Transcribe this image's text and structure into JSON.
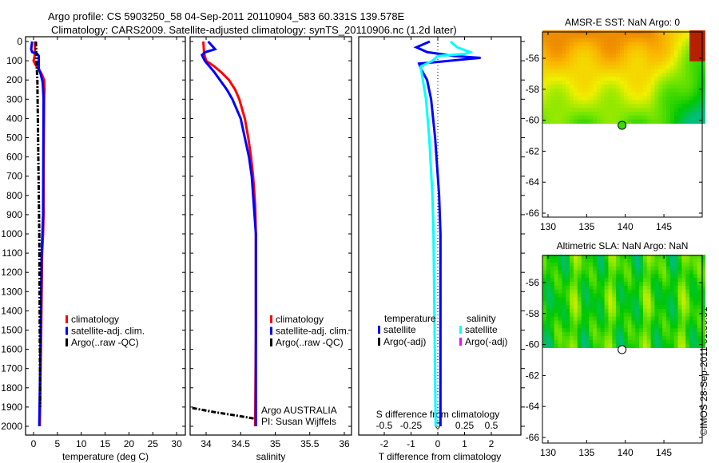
{
  "header": {
    "line1": "Argo profile: CS 5903250_58 04-Sep-2011 20110904_583 60.331S 139.578E",
    "line2": "Climatology: CARS2009. Satellite-adjusted climatology: synTS_20110906.nc (1.2d later)"
  },
  "colors": {
    "climatology": "#ff0000",
    "satellite": "#0000ff",
    "argo": "#000000",
    "sal_satellite": "#00ffff",
    "sal_argo": "#ff00ff"
  },
  "depth_ticks": [
    "0",
    "100",
    "200",
    "300",
    "400",
    "500",
    "600",
    "700",
    "800",
    "900",
    "1000",
    "1100",
    "1200",
    "1300",
    "1400",
    "1500",
    "1600",
    "1700",
    "1800",
    "1900",
    "2000"
  ],
  "chart_data": [
    {
      "type": "line",
      "xlabel": "temperature (deg C)",
      "ylabel": "depth",
      "xlim": [
        -1.7,
        31.8
      ],
      "ylim": [
        2045,
        0
      ],
      "xticks": [
        "0",
        "5",
        "10",
        "15",
        "20",
        "25",
        "30"
      ],
      "legend": [
        "climatology",
        "satellite-adj. clim.",
        "Argo(..raw -QC)"
      ],
      "series": [
        {
          "name": "climatology",
          "depth": [
            0,
            50,
            80,
            100,
            120,
            140,
            160,
            180,
            200,
            250,
            300,
            700,
            900,
            1000,
            1100,
            1500,
            2000
          ],
          "values": [
            0.3,
            0.3,
            0.2,
            0.0,
            0.4,
            0.9,
            1.5,
            1.9,
            2.2,
            2.3,
            2.2,
            2.1,
            2.1,
            2.0,
            1.8,
            1.6,
            1.3
          ]
        },
        {
          "name": "satellite-adj. clim.",
          "depth": [
            0,
            40,
            55,
            65,
            75,
            140,
            170,
            210,
            250,
            300,
            900,
            1100,
            1500,
            2000
          ],
          "values": [
            -0.3,
            -0.5,
            -0.3,
            0.8,
            1.1,
            1.1,
            1.5,
            1.9,
            2.0,
            2.1,
            2.0,
            1.7,
            1.5,
            1.2
          ]
        },
        {
          "name": "Argo(..raw -QC)",
          "depth": [
            0,
            100,
            200,
            400,
            600,
            800,
            1000,
            1200,
            1500,
            1900
          ],
          "values": [
            0.5,
            0.6,
            0.8,
            0.9,
            1.0,
            1.1,
            1.2,
            1.25,
            1.3,
            1.4
          ]
        }
      ]
    },
    {
      "type": "line",
      "xlabel": "salinity",
      "xlim": [
        33.77,
        36.1
      ],
      "ylim": [
        2045,
        0
      ],
      "xticks": [
        "34",
        "34.5",
        "35",
        "35.5",
        "36"
      ],
      "legend": [
        "climatology",
        "satellite-adj. clim.",
        "Argo(..raw -QC)"
      ],
      "annotation": [
        "Argo AUSTRALIA",
        "PI: Susan Wijffels"
      ],
      "series": [
        {
          "name": "climatology",
          "depth": [
            0,
            60,
            100,
            130,
            160,
            200,
            250,
            300,
            400,
            500,
            600,
            700,
            850,
            1000,
            1500,
            2000
          ],
          "values": [
            33.96,
            33.97,
            34.0,
            34.12,
            34.22,
            34.33,
            34.42,
            34.48,
            34.56,
            34.61,
            34.65,
            34.68,
            34.71,
            34.72,
            34.72,
            34.71
          ]
        },
        {
          "name": "satellite-adj. clim.",
          "depth": [
            0,
            40,
            55,
            70,
            100,
            130,
            160,
            200,
            250,
            300,
            400,
            500,
            600,
            700,
            850,
            1000,
            1500,
            2000
          ],
          "values": [
            34.03,
            34.13,
            33.99,
            33.94,
            33.98,
            34.05,
            34.12,
            34.2,
            34.3,
            34.38,
            34.5,
            34.56,
            34.62,
            34.66,
            34.69,
            34.72,
            34.72,
            34.72
          ]
        },
        {
          "name": "Argo(..raw -QC)",
          "depth": [
            1905,
            1925,
            1945,
            1960
          ],
          "values": [
            33.8,
            34.1,
            34.45,
            34.7
          ]
        }
      ]
    },
    {
      "type": "line",
      "xlabel": "T difference from climatology",
      "xlabel2": "S difference from climatology",
      "xlim": [
        -2.95,
        3.1
      ],
      "ylim": [
        2045,
        0
      ],
      "xticks": [
        "-2",
        "-1",
        "0",
        "1",
        "2"
      ],
      "xticks2": [
        "-0.5",
        "-0.25",
        "0",
        "0.25",
        "0.5"
      ],
      "legend_headers": [
        "temperature",
        "salinity"
      ],
      "legend": [
        "satellite",
        "Argo(-adj)",
        "satellite",
        "Argo(-adj)"
      ],
      "series": [
        {
          "name": "temperature satellite",
          "depth": [
            0,
            30,
            55,
            75,
            85,
            90,
            105,
            115,
            150,
            200,
            300,
            500,
            800,
            1000,
            1500,
            2000
          ],
          "values": [
            -0.3,
            -0.8,
            -0.4,
            0.6,
            1.6,
            1.2,
            0.1,
            -0.7,
            -0.6,
            -0.4,
            -0.25,
            -0.1,
            0.05,
            0.1,
            0.1,
            0.1
          ]
        },
        {
          "name": "salinity satellite",
          "depth": [
            0,
            30,
            55,
            65,
            75,
            85,
            100,
            130,
            200,
            300,
            500,
            800,
            1000,
            1500,
            2000
          ],
          "values": [
            0.12,
            0.18,
            0.3,
            0.25,
            0.0,
            -0.02,
            -0.05,
            -0.16,
            -0.14,
            -0.11,
            -0.08,
            -0.05,
            -0.04,
            -0.03,
            -0.02
          ]
        }
      ]
    },
    {
      "type": "heatmap",
      "title": "AMSR-E SST: NaN Argo: 0",
      "xticks": [
        "130",
        "135",
        "140",
        "145"
      ],
      "yticks": [
        "-56",
        "-58",
        "-60",
        "-62",
        "-64",
        "-66"
      ],
      "argo_position": {
        "lon": 139.578,
        "lat": -60.331,
        "color": "#33dd00"
      }
    },
    {
      "type": "heatmap",
      "title": "Altimetric SLA: NaN Argo: NaN",
      "xticks": [
        "130",
        "135",
        "140",
        "145"
      ],
      "yticks": [
        "-56",
        "-58",
        "-60",
        "-62",
        "-64",
        "-66"
      ],
      "argo_position": {
        "lon": 139.578,
        "lat": -60.331,
        "color": "#ffffff"
      }
    }
  ],
  "footer": {
    "credit": "©IMOS 28-Sep-2011 01:36:51"
  }
}
